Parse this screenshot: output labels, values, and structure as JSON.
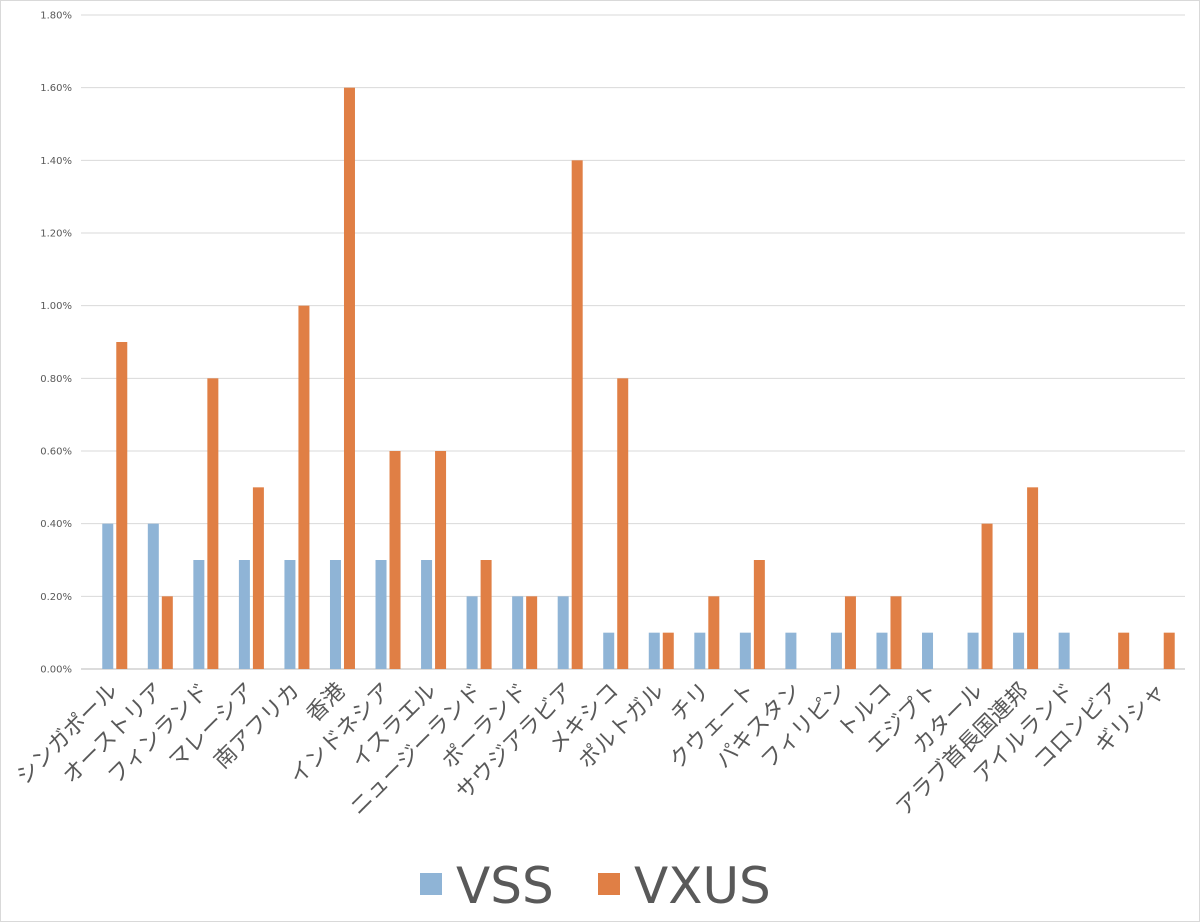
{
  "chart_data": {
    "type": "bar",
    "title": "",
    "xlabel": "",
    "ylabel": "",
    "ylim": [
      0,
      1.8
    ],
    "y_tick_format": "percent-2dp",
    "yticks": [
      "0.00%",
      "0.20%",
      "0.40%",
      "0.60%",
      "0.80%",
      "1.00%",
      "1.20%",
      "1.40%",
      "1.60%",
      "1.80%"
    ],
    "grid": true,
    "legend_position": "bottom",
    "categories": [
      "シンガポール",
      "オーストリア",
      "フィンランド",
      "マレーシア",
      "南アフリカ",
      "香港",
      "インドネシア",
      "イスラエル",
      "ニュージーランド",
      "ポーランド",
      "サウジアラビア",
      "メキシコ",
      "ポルトガル",
      "チリ",
      "クウェート",
      "パキスタン",
      "フィリピン",
      "トルコ",
      "エジプト",
      "カタール",
      "アラブ首長国連邦",
      "アイルランド",
      "コロンビア",
      "ギリシャ"
    ],
    "series": [
      {
        "name": "VSS",
        "color": "#8fb4d6",
        "values": [
          0.4,
          0.4,
          0.3,
          0.3,
          0.3,
          0.3,
          0.3,
          0.3,
          0.2,
          0.2,
          0.2,
          0.1,
          0.1,
          0.1,
          0.1,
          0.1,
          0.1,
          0.1,
          0.1,
          0.1,
          0.1,
          0.1,
          0,
          0
        ]
      },
      {
        "name": "VXUS",
        "color": "#e07f45",
        "values": [
          0.9,
          0.2,
          0.8,
          0.5,
          1.0,
          1.6,
          0.6,
          0.6,
          0.3,
          0.2,
          1.4,
          0.8,
          0.1,
          0.2,
          0.3,
          0,
          0.2,
          0.2,
          0,
          0.4,
          0.5,
          0,
          0.1,
          0.1
        ]
      }
    ]
  }
}
